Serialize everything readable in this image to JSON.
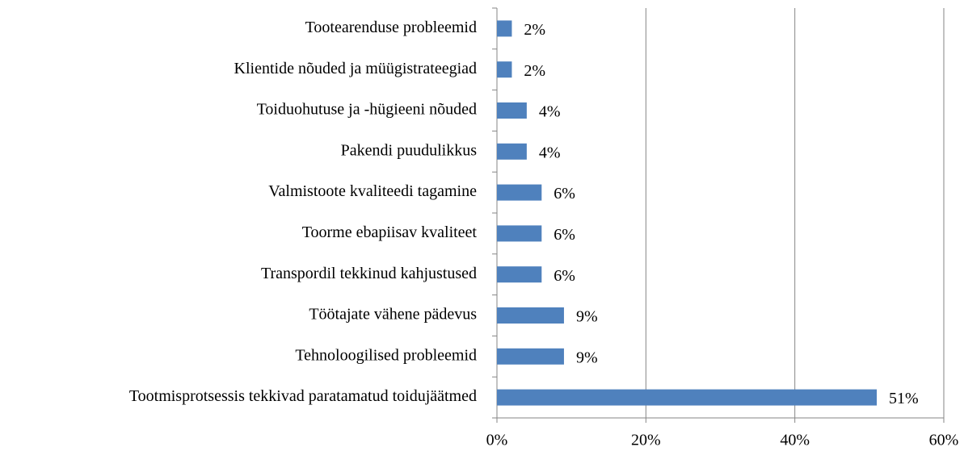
{
  "chart_data": {
    "type": "bar",
    "orientation": "horizontal",
    "categories": [
      "Tootearenduse probleemid",
      "Klientide nõuded ja müügistrateegiad",
      "Toiduohutuse ja -hügieeni nõuded",
      "Pakendi puudulikkus",
      "Valmistoote kvaliteedi tagamine",
      "Toorme ebapiisav kvaliteet",
      "Transpordil tekkinud kahjustused",
      "Töötajate vähene pädevus",
      "Tehnoloogilised probleemid",
      "Tootmisprotsessis tekkivad paratamatud toidujäätmed"
    ],
    "values": [
      2,
      2,
      4,
      4,
      6,
      6,
      6,
      9,
      9,
      51
    ],
    "value_labels": [
      "2%",
      "2%",
      "4%",
      "4%",
      "6%",
      "6%",
      "6%",
      "9%",
      "9%",
      "51%"
    ],
    "color": "#4f81bd",
    "xlim": [
      0,
      60
    ],
    "xticks": [
      {
        "value": 0,
        "label": "0%"
      },
      {
        "value": 20,
        "label": "20%"
      },
      {
        "value": 40,
        "label": "40%"
      },
      {
        "value": 60,
        "label": "60%"
      }
    ],
    "grid": true
  }
}
